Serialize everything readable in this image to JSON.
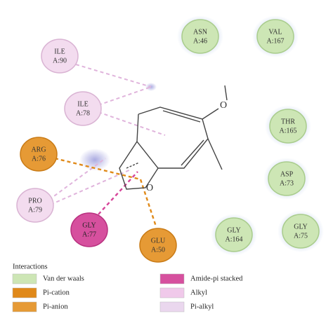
{
  "nodes": [
    {
      "name": "ILE",
      "id": "A:90"
    },
    {
      "name": "ILE",
      "id": "A:78"
    },
    {
      "name": "ARG",
      "id": "A:76"
    },
    {
      "name": "PRO",
      "id": "A:79"
    },
    {
      "name": "GLY",
      "id": "A:77"
    },
    {
      "name": "GLU",
      "id": "A:50"
    },
    {
      "name": "ASN",
      "id": "A:46"
    },
    {
      "name": "VAL",
      "id": "A:167"
    },
    {
      "name": "THR",
      "id": "A:165"
    },
    {
      "name": "ASP",
      "id": "A:73"
    },
    {
      "name": "GLY",
      "id": "A:164"
    },
    {
      "name": "GLY",
      "id": "A:75"
    }
  ],
  "ligand": {
    "atoms": [
      "O",
      "O"
    ]
  },
  "legend": {
    "title": "Interactions",
    "items": [
      "Van der waals",
      "Pi-cation",
      "Pi-anion",
      "Amide-pi stacked",
      "Alkyl",
      "Pi-alkyl"
    ]
  }
}
